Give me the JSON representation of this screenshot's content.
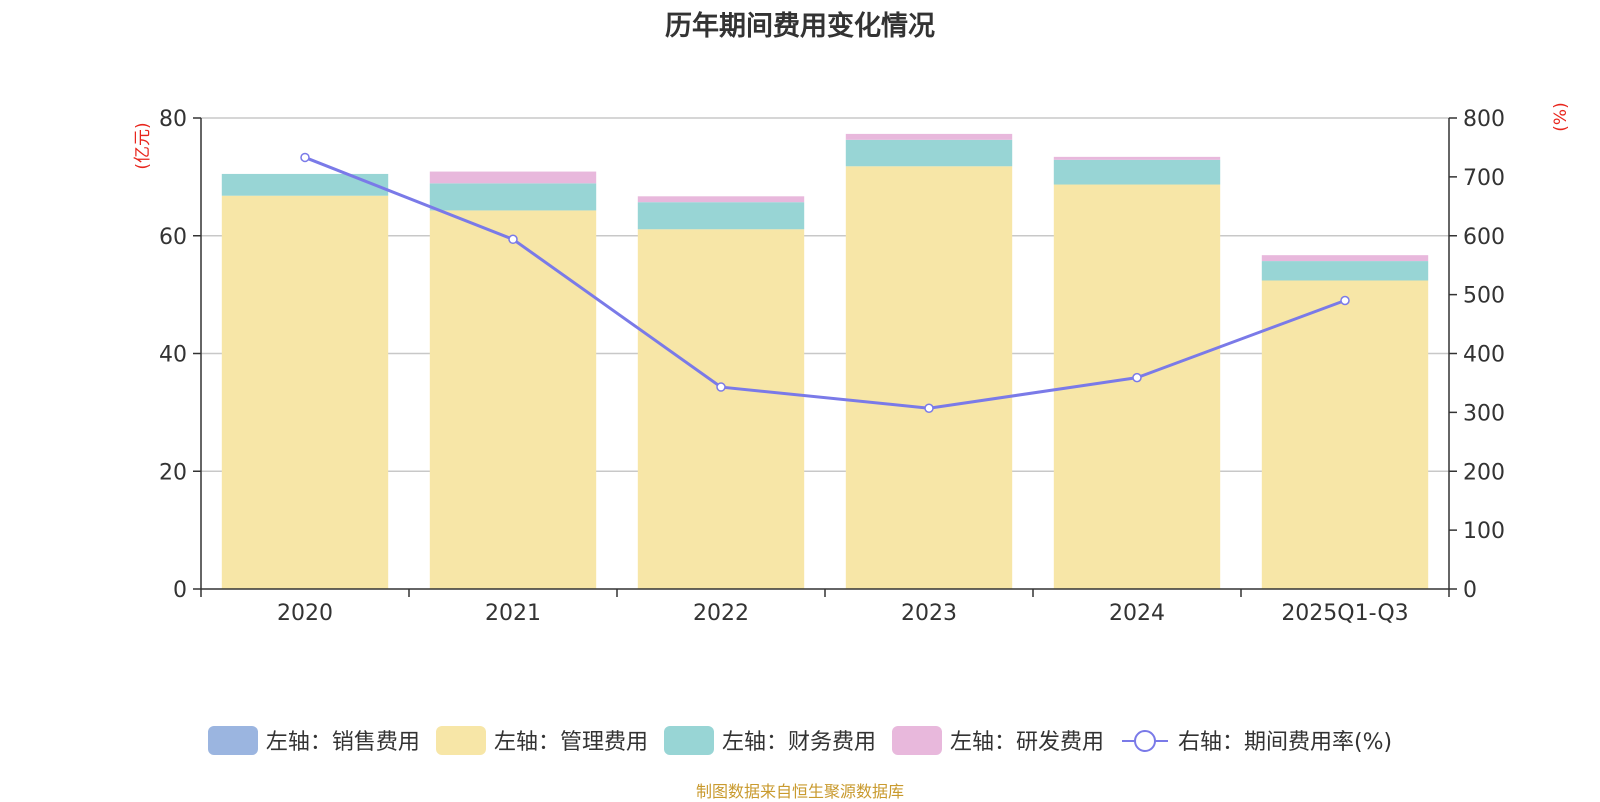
{
  "chart_data": {
    "type": "bar",
    "title": "历年期间费用变化情况",
    "categories": [
      "2020",
      "2021",
      "2022",
      "2023",
      "2024",
      "2025Q1-Q3"
    ],
    "left_axis": {
      "unit": "(亿元)",
      "ylim": [
        0,
        80
      ],
      "ticks": [
        "0",
        "20",
        "40",
        "60",
        "80"
      ]
    },
    "right_axis": {
      "unit": "(%)",
      "ylim": [
        0,
        800
      ],
      "ticks": [
        "0",
        "100",
        "200",
        "300",
        "400",
        "500",
        "600",
        "700",
        "800"
      ]
    },
    "series": [
      {
        "name": "左轴：销售费用",
        "axis": "left",
        "type": "bar",
        "color": "#9bb5e0",
        "values": [
          0,
          0,
          0,
          0,
          0,
          0
        ]
      },
      {
        "name": "左轴：管理费用",
        "axis": "left",
        "type": "bar",
        "color": "#f7e6a7",
        "values": [
          66.8,
          64.3,
          61.1,
          71.8,
          68.7,
          52.4
        ]
      },
      {
        "name": "左轴：财务费用",
        "axis": "left",
        "type": "bar",
        "color": "#98d5d5",
        "values": [
          3.7,
          4.6,
          4.6,
          4.5,
          4.2,
          3.3
        ]
      },
      {
        "name": "左轴：研发费用",
        "axis": "left",
        "type": "bar",
        "color": "#e8b8dc",
        "values": [
          0.0,
          2.0,
          1.0,
          1.0,
          0.5,
          1.0
        ]
      },
      {
        "name": "右轴：期间费用率(%)",
        "axis": "right",
        "type": "line",
        "color": "#7a7ae8",
        "values": [
          733,
          594,
          343,
          307,
          359,
          490
        ]
      }
    ],
    "grid": true,
    "legend_position": "bottom"
  },
  "source": "制图数据来自恒生聚源数据库"
}
